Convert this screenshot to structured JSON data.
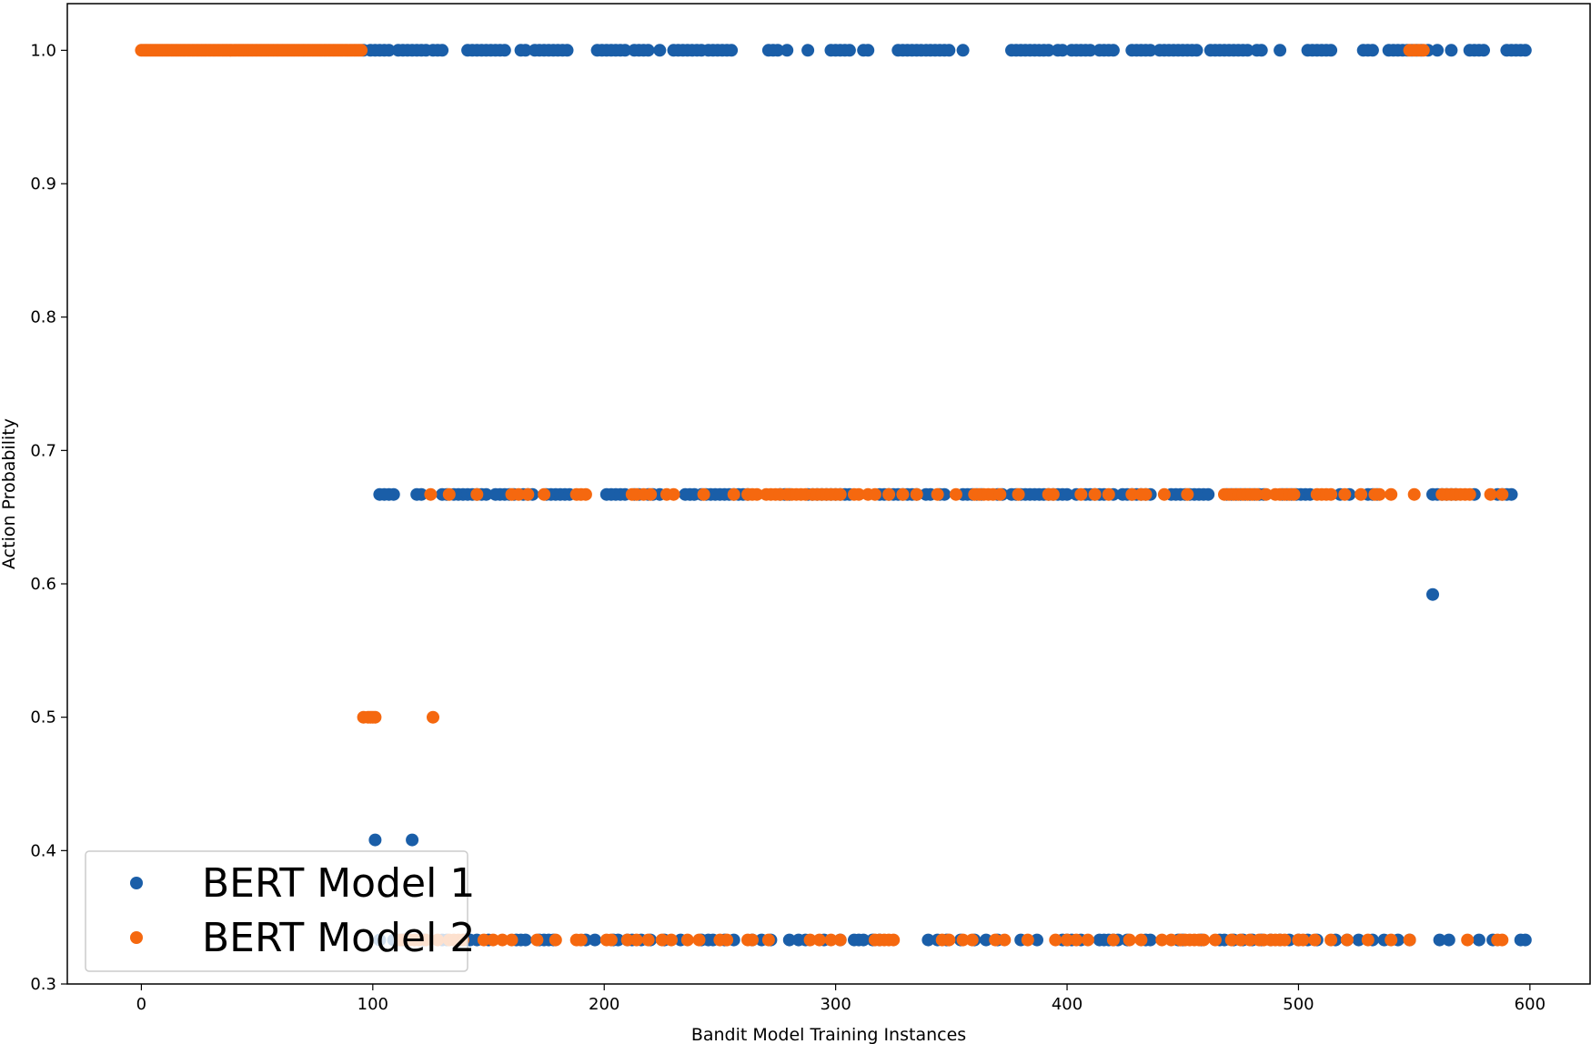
{
  "chart_data": {
    "type": "scatter",
    "title": "",
    "xlabel": "Bandit Model Training Instances",
    "ylabel": "Action Probability",
    "xlim": [
      -32,
      626
    ],
    "ylim": [
      0.3,
      1.035
    ],
    "xticks": [
      0,
      100,
      200,
      300,
      400,
      500,
      600
    ],
    "xtick_labels": [
      "0",
      "100",
      "200",
      "300",
      "400",
      "500",
      "600"
    ],
    "yticks": [
      0.3,
      0.4,
      0.5,
      0.6,
      0.7,
      0.8,
      0.9,
      1.0
    ],
    "ytick_labels": [
      "0.3",
      "0.4",
      "0.5",
      "0.6",
      "0.7",
      "0.8",
      "0.9",
      "1.0"
    ],
    "grid": false,
    "legend_position": "lower-left",
    "series": [
      {
        "name": "BERT Model 1",
        "color": "#1a5ea8",
        "points": [
          {
            "y": 1.0,
            "x": [
              96,
              99,
              101,
              103,
              105,
              107,
              111,
              113,
              115,
              117,
              119,
              121,
              123,
              126,
              128,
              130,
              141,
              143,
              145,
              147,
              149,
              151,
              153,
              155,
              157,
              164,
              166,
              170,
              172,
              174,
              176,
              178,
              180,
              182,
              184,
              197,
              199,
              201,
              203,
              205,
              207,
              209,
              213,
              215,
              217,
              219,
              224,
              230,
              232,
              234,
              236,
              238,
              240,
              242,
              245,
              247,
              249,
              251,
              253,
              255,
              271,
              273,
              275,
              279,
              288,
              298,
              300,
              302,
              304,
              306,
              312,
              314,
              327,
              329,
              331,
              333,
              335,
              337,
              339,
              341,
              343,
              345,
              347,
              349,
              355,
              376,
              378,
              380,
              382,
              384,
              386,
              388,
              390,
              392,
              396,
              398,
              402,
              404,
              406,
              408,
              410,
              414,
              416,
              418,
              420,
              428,
              430,
              432,
              434,
              436,
              440,
              442,
              444,
              446,
              448,
              450,
              452,
              454,
              456,
              462,
              464,
              466,
              468,
              470,
              472,
              474,
              476,
              478,
              482,
              484,
              492,
              504,
              506,
              508,
              510,
              512,
              514,
              528,
              530,
              532,
              539,
              541,
              543,
              545,
              547,
              549,
              551,
              553,
              556,
              560,
              566,
              574,
              576,
              578,
              580,
              590,
              592,
              594,
              596,
              598
            ]
          },
          {
            "y": 0.667,
            "x": [
              103,
              105,
              107,
              109,
              119,
              121,
              130,
              132,
              135,
              137,
              139,
              141,
              143,
              145,
              147,
              149,
              153,
              155,
              157,
              159,
              161,
              165,
              167,
              169,
              175,
              177,
              179,
              181,
              183,
              185,
              201,
              203,
              205,
              207,
              209,
              213,
              215,
              219,
              221,
              224,
              235,
              237,
              239,
              242,
              244,
              246,
              248,
              250,
              252,
              254,
              256,
              258,
              260,
              262,
              276,
              278,
              280,
              288,
              290,
              292,
              294,
              296,
              298,
              300,
              302,
              304,
              306,
              319,
              321,
              323,
              325,
              327,
              329,
              331,
              333,
              335,
              339,
              341,
              345,
              347,
              355,
              357,
              359,
              361,
              363,
              370,
              372,
              376,
              378,
              380,
              382,
              384,
              386,
              388,
              390,
              392,
              394,
              396,
              398,
              400,
              404,
              408,
              410,
              412,
              414,
              416,
              420,
              424,
              426,
              428,
              430,
              432,
              434,
              436,
              445,
              447,
              449,
              451,
              453,
              455,
              457,
              459,
              461,
              469,
              471,
              473,
              475,
              477,
              479,
              481,
              483,
              485,
              493,
              495,
              497,
              499,
              501,
              503,
              505,
              518,
              522,
              530,
              532,
              534,
              558,
              560,
              562,
              564,
              566,
              568,
              576,
              586,
              588,
              590,
              592
            ]
          },
          {
            "y": 0.592,
            "x": [
              558
            ]
          },
          {
            "y": 0.408,
            "x": [
              101,
              117
            ]
          },
          {
            "y": 0.333,
            "x": [
              103,
              109,
              111,
              113,
              120,
              122,
              130,
              132,
              140,
              142,
              145,
              150,
              162,
              164,
              166,
              172,
              174,
              176,
              178,
              192,
              196,
              204,
              206,
              210,
              212,
              216,
              220,
              226,
              233,
              242,
              245,
              247,
              252,
              256,
              264,
              268,
              272,
              280,
              284,
              287,
              295,
              302,
              308,
              310,
              312,
              316,
              319,
              340,
              344,
              348,
              354,
              360,
              365,
              370,
              380,
              387,
              398,
              400,
              402,
              406,
              414,
              416,
              418,
              420,
              422,
              426,
              434,
              436,
              448,
              450,
              458,
              466,
              468,
              472,
              476,
              480,
              484,
              488,
              492,
              496,
              500,
              504,
              508,
              516,
              521,
              526,
              532,
              537,
              543,
              548,
              561,
              565,
              578,
              584,
              596,
              598
            ]
          }
        ]
      },
      {
        "name": "BERT Model 2",
        "color": "#f5680f",
        "points": [
          {
            "y": 1.0,
            "x": [
              0,
              1,
              2,
              3,
              4,
              5,
              6,
              7,
              8,
              9,
              10,
              11,
              12,
              13,
              14,
              15,
              16,
              17,
              18,
              19,
              20,
              21,
              22,
              23,
              24,
              25,
              26,
              27,
              28,
              29,
              30,
              31,
              32,
              33,
              34,
              35,
              36,
              37,
              38,
              39,
              40,
              41,
              42,
              43,
              44,
              45,
              46,
              47,
              48,
              49,
              50,
              51,
              52,
              53,
              54,
              55,
              56,
              57,
              58,
              59,
              60,
              61,
              62,
              63,
              64,
              65,
              66,
              67,
              68,
              69,
              70,
              71,
              72,
              73,
              74,
              75,
              76,
              77,
              78,
              79,
              80,
              81,
              82,
              83,
              84,
              85,
              86,
              87,
              88,
              89,
              90,
              91,
              92,
              93,
              94,
              95,
              548,
              550,
              552,
              554
            ]
          },
          {
            "y": 0.667,
            "x": [
              125,
              133,
              145,
              160,
              163,
              167,
              174,
              188,
              190,
              192,
              212,
              214,
              217,
              220,
              227,
              230,
              243,
              256,
              262,
              264,
              266,
              270,
              272,
              274,
              276,
              279,
              281,
              283,
              285,
              287,
              290,
              292,
              294,
              296,
              298,
              300,
              302,
              308,
              310,
              314,
              317,
              323,
              329,
              335,
              344,
              352,
              360,
              362,
              364,
              366,
              368,
              371,
              379,
              392,
              394,
              406,
              412,
              418,
              428,
              432,
              434,
              442,
              452,
              468,
              470,
              472,
              474,
              476,
              478,
              480,
              482,
              486,
              490,
              492,
              494,
              496,
              498,
              508,
              510,
              512,
              514,
              520,
              527,
              533,
              535,
              540,
              550,
              562,
              564,
              566,
              568,
              570,
              572,
              574,
              583,
              588
            ]
          },
          {
            "y": 0.5,
            "x": [
              96,
              98,
              99,
              100,
              101,
              126
            ]
          },
          {
            "y": 0.333,
            "x": [
              112,
              114,
              116,
              118,
              120,
              123,
              128,
              133,
              135,
              137,
              139,
              148,
              152,
              156,
              160,
              171,
              179,
              188,
              190,
              201,
              203,
              210,
              214,
              219,
              225,
              229,
              236,
              241,
              250,
              253,
              262,
              264,
              271,
              289,
              293,
              298,
              302,
              317,
              319,
              321,
              323,
              325,
              346,
              349,
              355,
              359,
              369,
              373,
              383,
              395,
              400,
              404,
              409,
              420,
              427,
              432,
              441,
              445,
              449,
              451,
              453,
              455,
              457,
              459,
              464,
              471,
              475,
              479,
              483,
              485,
              488,
              490,
              492,
              494,
              500,
              502,
              507,
              514,
              521,
              530,
              540,
              548,
              573,
              586,
              588
            ]
          }
        ]
      }
    ]
  }
}
